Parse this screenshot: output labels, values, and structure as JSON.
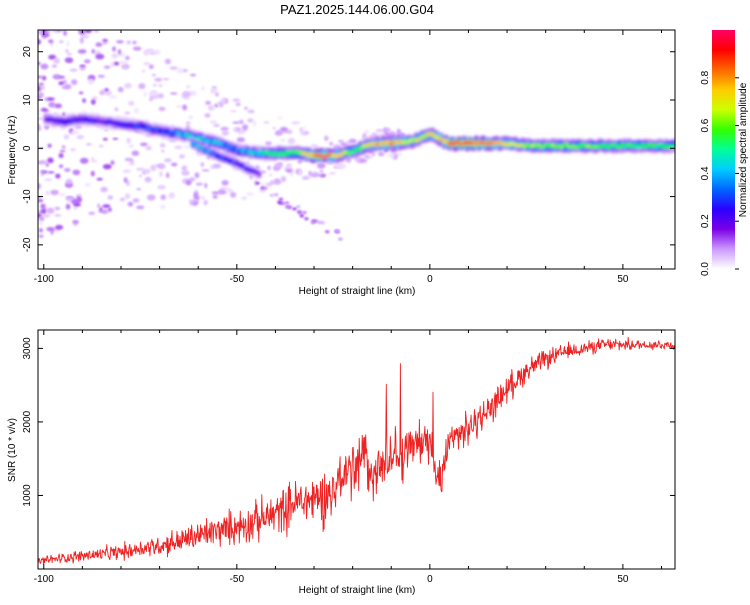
{
  "chart_data": [
    {
      "type": "heatmap",
      "title": "PAZ1.2025.144.06.00.G04",
      "xlabel": "Height of straight line (km)",
      "ylabel": "Frequency (Hz)",
      "xlim": [
        -101.5,
        63.5
      ],
      "ylim": [
        -25,
        24.5
      ],
      "xticks": [
        -100,
        -50,
        0,
        50
      ],
      "yticks": [
        -20,
        -10,
        0,
        10,
        20
      ],
      "colorbar": {
        "label": "Normalized spectral amplitude",
        "range": [
          0,
          1
        ],
        "ticks": [
          "0.0",
          "0.2",
          "0.4",
          "0.6",
          "0.8"
        ],
        "colors": [
          "#ffffff",
          "#cc99ff",
          "#7a00e6",
          "#2a00ff",
          "#0066ff",
          "#00ccff",
          "#00ff99",
          "#33ff00",
          "#ccff00",
          "#ffcc00",
          "#ff6600",
          "#ff0000",
          "#ff0066"
        ]
      },
      "ridge": {
        "x": [
          -100,
          -95,
          -90,
          -85,
          -80,
          -75,
          -70,
          -65,
          -60,
          -55,
          -50,
          -45,
          -40,
          -35,
          -30,
          -25,
          -20,
          -15,
          -10,
          -5,
          0,
          3,
          5,
          10,
          15,
          20,
          25,
          30,
          35,
          40,
          45,
          50,
          55,
          60,
          63.5
        ],
        "frequency": [
          6,
          5.5,
          6,
          5.5,
          5,
          4.5,
          3.5,
          3,
          2,
          1,
          -0.5,
          -1,
          -1,
          -1,
          -1.5,
          -1.5,
          -0.5,
          1,
          1,
          1.5,
          3,
          1.5,
          1,
          1,
          1,
          1,
          0.5,
          0.5,
          0.5,
          0.5,
          0.5,
          0.5,
          0.5,
          0.5,
          0.5
        ],
        "amplitude": [
          0.2,
          0.25,
          0.25,
          0.2,
          0.25,
          0.3,
          0.3,
          0.4,
          0.45,
          0.4,
          0.35,
          0.45,
          0.55,
          0.55,
          0.85,
          0.75,
          0.55,
          0.75,
          0.8,
          0.65,
          0.7,
          0.75,
          0.85,
          0.85,
          0.8,
          0.7,
          0.6,
          0.6,
          0.6,
          0.6,
          0.55,
          0.55,
          0.55,
          0.55,
          0.5
        ]
      },
      "branch": {
        "x": [
          -62,
          -57,
          -52,
          -47,
          -44
        ],
        "frequency": [
          1,
          -1,
          -2.5,
          -4.5,
          -5.5
        ],
        "amplitude": [
          0.45,
          0.35,
          0.3,
          0.25,
          0.2
        ]
      }
    },
    {
      "type": "line",
      "xlabel": "Height of straight line (km)",
      "ylabel": "SNR (10 * v/v)",
      "xlim": [
        -101.5,
        63.5
      ],
      "ylim": [
        0,
        3250
      ],
      "xticks": [
        -100,
        -50,
        0,
        50
      ],
      "yticks": [
        1000,
        2000,
        3000
      ],
      "series": [
        {
          "name": "SNR",
          "color": "#ee2222",
          "x": [
            -101.5,
            -95,
            -90,
            -85,
            -80,
            -75,
            -70,
            -65,
            -60,
            -55,
            -50,
            -45,
            -40,
            -35,
            -30,
            -25,
            -20,
            -17,
            -15,
            -10,
            -5,
            -3,
            0,
            2,
            3,
            5,
            10,
            15,
            20,
            25,
            30,
            35,
            40,
            45,
            50,
            55,
            60,
            63.5
          ],
          "y": [
            100,
            150,
            180,
            200,
            230,
            280,
            320,
            380,
            450,
            520,
            580,
            650,
            750,
            900,
            950,
            1050,
            1450,
            1500,
            1300,
            1500,
            1650,
            1700,
            1800,
            1250,
            1100,
            1750,
            1900,
            2150,
            2450,
            2700,
            2850,
            2950,
            3000,
            3050,
            3050,
            3050,
            3050,
            3050
          ],
          "spread": [
            80,
            100,
            110,
            130,
            150,
            170,
            200,
            240,
            280,
            300,
            330,
            360,
            400,
            450,
            500,
            550,
            600,
            600,
            550,
            500,
            450,
            450,
            450,
            400,
            300,
            350,
            300,
            280,
            250,
            220,
            180,
            150,
            130,
            120,
            110,
            100,
            100,
            100
          ]
        }
      ]
    }
  ]
}
